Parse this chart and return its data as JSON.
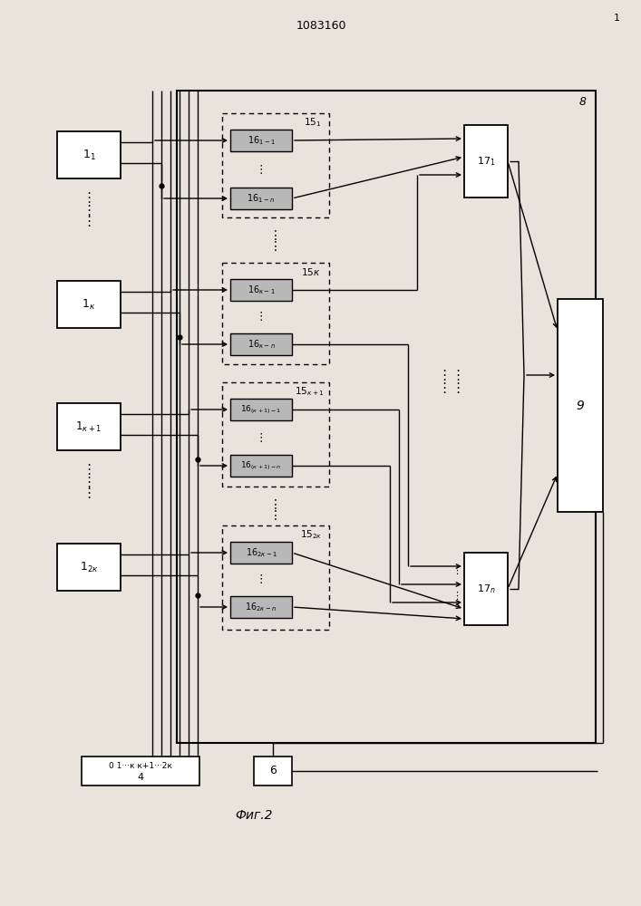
{
  "title": "1083160",
  "fig_label": "Фиг.2",
  "bg_color": "#e8e4dc",
  "line_color": "#000000",
  "box_fill": "#ffffff",
  "dark_fill": "#b8b8b8",
  "figsize": [
    7.07,
    10.0
  ],
  "dpi": 100
}
